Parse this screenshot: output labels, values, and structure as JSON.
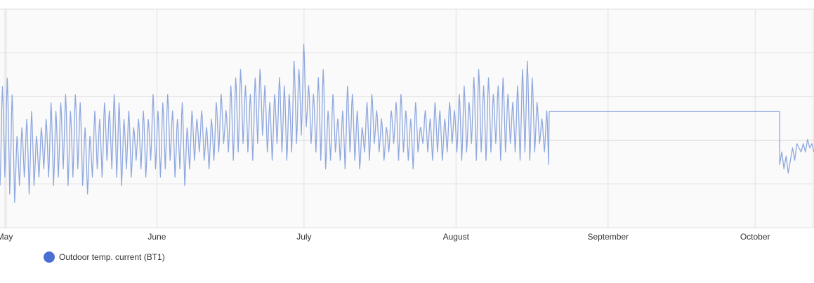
{
  "chart_data": {
    "type": "line",
    "x_axis": {
      "ticks": [
        "May",
        "June",
        "July",
        "August",
        "September",
        "October"
      ],
      "range": [
        "2023-04-30",
        "2023-10-13"
      ]
    },
    "y_axis": {
      "labels_shown": false,
      "range_estimate": [
        0,
        26
      ]
    },
    "grid": true,
    "legend": {
      "placement": "bottom-left",
      "entries": [
        {
          "name": "Outdoor temp. current (BT1)",
          "color": "#4a6fd4"
        }
      ]
    },
    "series": [
      {
        "name": "Outdoor temp. current (BT1)",
        "color": "#8fa8de",
        "segments": [
          {
            "from": "2023-04-30",
            "to": "2023-08-20",
            "description": "daily oscillating hourly readings",
            "daily_peaks": [
              17,
              18,
              16,
              11,
              12,
              13,
              14,
              11,
              12,
              13,
              15,
              14,
              15,
              16,
              14,
              16,
              15,
              12,
              11,
              14,
              13,
              15,
              14,
              16,
              15,
              13,
              14,
              12,
              13,
              14,
              13,
              16,
              14,
              15,
              16,
              14,
              13,
              15,
              12,
              14,
              13,
              14,
              12,
              13,
              15,
              16,
              14,
              17,
              18,
              19,
              17,
              16,
              18,
              19,
              17,
              15,
              16,
              18,
              17,
              16,
              20,
              19,
              22,
              17,
              16,
              18,
              19,
              14,
              16,
              13,
              14,
              17,
              16,
              14,
              12,
              15,
              16,
              14,
              13,
              12,
              14,
              15,
              16,
              14,
              13,
              15,
              12,
              14,
              13,
              15,
              14,
              13,
              15,
              14,
              16,
              17,
              15,
              18,
              19,
              17,
              18,
              16,
              17,
              18,
              16,
              15,
              17,
              19,
              20,
              18,
              15,
              13,
              14
            ],
            "daily_lows": [
              5,
              6,
              4,
              3,
              5,
              6,
              4,
              5,
              6,
              7,
              6,
              5,
              6,
              7,
              5,
              6,
              7,
              5,
              4,
              6,
              7,
              6,
              8,
              7,
              6,
              5,
              7,
              6,
              8,
              7,
              6,
              8,
              7,
              6,
              7,
              8,
              6,
              7,
              5,
              7,
              8,
              9,
              8,
              7,
              8,
              9,
              10,
              9,
              8,
              9,
              10,
              9,
              8,
              10,
              11,
              9,
              8,
              10,
              9,
              8,
              9,
              10,
              11,
              12,
              10,
              9,
              8,
              7,
              8,
              9,
              8,
              7,
              9,
              8,
              7,
              9,
              8,
              10,
              9,
              8,
              9,
              10,
              8,
              9,
              8,
              7,
              9,
              10,
              9,
              8,
              9,
              8,
              9,
              10,
              9,
              8,
              9,
              10,
              8,
              9,
              8,
              9,
              10,
              8,
              9,
              10,
              9,
              8,
              9,
              8,
              9,
              10,
              9
            ]
          },
          {
            "from": "2023-08-20",
            "to": "2023-10-06",
            "value": 13.8,
            "description": "flat line (no new data)"
          },
          {
            "from": "2023-10-06",
            "to": "2023-10-13",
            "description": "sparse readings",
            "values": [
              7.5,
              9,
              7,
              8.5,
              6.5,
              8,
              9.5,
              8,
              10,
              9.5,
              9,
              10,
              9,
              10.5,
              9.5,
              10,
              9
            ]
          }
        ]
      }
    ]
  }
}
